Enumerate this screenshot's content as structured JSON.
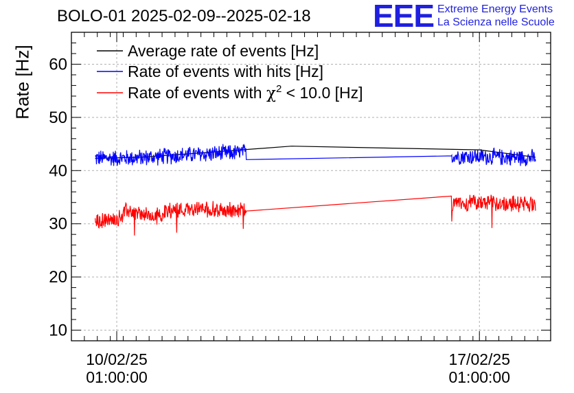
{
  "title": "BOLO-01 2025-02-09--2025-02-18",
  "logo": {
    "mark": "EEE",
    "line1": "Extreme Energy Events",
    "line2": "La Scienza nelle Scuole"
  },
  "colors": {
    "average": "#000000",
    "hits": "#0000ff",
    "chi2": "#ff0000",
    "logo": "#1f1fe0"
  },
  "chart_data": {
    "type": "line",
    "title": "BOLO-01 2025-02-09--2025-02-18",
    "xlabel": "",
    "ylabel": "Rate [Hz]",
    "ylim": [
      8,
      66
    ],
    "xlim": [
      "2025-02-09 04:00",
      "2025-02-18 10:00"
    ],
    "x_ticks": [
      {
        "value": "2025-02-10 01:00",
        "line1": "10/02/25",
        "line2": "01:00:00"
      },
      {
        "value": "2025-02-17 01:00",
        "line1": "17/02/25",
        "line2": "01:00:00"
      }
    ],
    "y_ticks": [
      10,
      20,
      30,
      40,
      50,
      60
    ],
    "grid": true,
    "legend_position": "top-left",
    "series": [
      {
        "name": "Average rate of events [Hz]",
        "legend_parts": [
          "Average rate of events [Hz]"
        ],
        "x": [
          "2025-02-09 15:00",
          "2025-02-10 12:00",
          "2025-02-11 12:00",
          "2025-02-13 10:00",
          "2025-02-17 01:00",
          "2025-02-18 03:00"
        ],
        "values": [
          42.3,
          42.5,
          43.2,
          44.6,
          43.9,
          42.5
        ]
      },
      {
        "name": "Rate of events with hits [Hz]",
        "legend_parts": [
          "Rate of events with hits [Hz]"
        ],
        "x": [
          "2025-02-09 15:00",
          "2025-02-10 12:00",
          "2025-02-11 12:00",
          "2025-02-13 10:00",
          "2025-02-17 01:00",
          "2025-02-18 03:00"
        ],
        "values": [
          42.3,
          42.4,
          43.0,
          43.8,
          42.6,
          42.4
        ],
        "noise_amplitude": 1.8
      },
      {
        "name": "Rate of events with χ2 < 10.0 [Hz]",
        "legend_parts": [
          "Rate of events with ",
          "χ",
          "2",
          " < 10.0 [Hz]"
        ],
        "x": [
          "2025-02-09 15:00",
          "2025-02-10 01:00",
          "2025-02-10 06:00",
          "2025-02-10 18:00",
          "2025-02-11 02:00",
          "2025-02-11 12:00",
          "2025-02-13 10:00",
          "2025-02-17 01:00",
          "2025-02-18 03:00"
        ],
        "values": [
          30.3,
          30.8,
          32.5,
          31.2,
          32.6,
          32.8,
          32.2,
          34.0,
          33.7
        ],
        "noise_amplitude": 1.7
      }
    ]
  }
}
